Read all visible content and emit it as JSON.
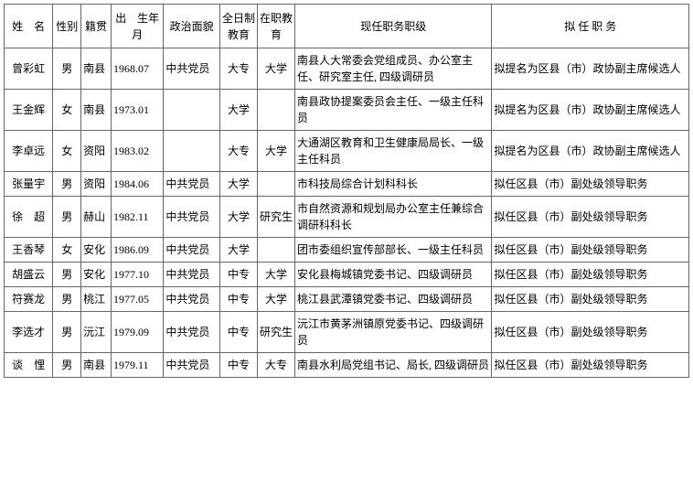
{
  "headers": {
    "name": "姓　名",
    "gender": "性别",
    "origin": "籍贯",
    "birth": "出　生年　月",
    "politics": "政治面貌",
    "edu_full": "全日制教育",
    "edu_job": "在职教育",
    "current": "现任职务职级",
    "proposed": "拟 任 职 务"
  },
  "rows": [
    {
      "name": "曾彩虹",
      "gender": "男",
      "origin": "南县",
      "birth": "1968.07",
      "politics": "中共党员",
      "edu_full": "大专",
      "edu_job": "大学",
      "current": "南县人大常委会党组成员、办公室主任、研究室主任, 四级调研员",
      "proposed": "拟提名为区县（市）政协副主席候选人"
    },
    {
      "name": "王金辉",
      "gender": "女",
      "origin": "南县",
      "birth": "1973.01",
      "politics": "",
      "edu_full": "大学",
      "edu_job": "",
      "current": "南县政协提案委员会主任、一级主任科员",
      "proposed": "拟提名为区县（市）政协副主席候选人"
    },
    {
      "name": "李卓远",
      "gender": "女",
      "origin": "资阳",
      "birth": "1983.02",
      "politics": "",
      "edu_full": "大专",
      "edu_job": "大学",
      "current": "大通湖区教育和卫生健康局局长、一级主任科员",
      "proposed": "拟提名为区县（市）政协副主席候选人"
    },
    {
      "name": "张量宇",
      "gender": "男",
      "origin": "资阳",
      "birth": "1984.06",
      "politics": "中共党员",
      "edu_full": "大学",
      "edu_job": "",
      "current": "市科技局综合计划科科长",
      "proposed": "拟任区县（市）副处级领导职务"
    },
    {
      "name": "徐　超",
      "gender": "男",
      "origin": "赫山",
      "birth": "1982.11",
      "politics": "中共党员",
      "edu_full": "大学",
      "edu_job": "研究生",
      "current": "市自然资源和规划局办公室主任兼综合调研科科长",
      "proposed": "拟任区县（市）副处级领导职务"
    },
    {
      "name": "王香琴",
      "gender": "女",
      "origin": "安化",
      "birth": "1986.09",
      "politics": "中共党员",
      "edu_full": "大学",
      "edu_job": "",
      "current": "团市委组织宣传部部长、一级主任科员",
      "proposed": "拟任区县（市）副处级领导职务"
    },
    {
      "name": "胡盛云",
      "gender": "男",
      "origin": "安化",
      "birth": "1977.10",
      "politics": "中共党员",
      "edu_full": "中专",
      "edu_job": "大学",
      "current": "安化县梅城镇党委书记、四级调研员",
      "proposed": "拟任区县（市）副处级领导职务"
    },
    {
      "name": "符赛龙",
      "gender": "男",
      "origin": "桃江",
      "birth": "1977.05",
      "politics": "中共党员",
      "edu_full": "中专",
      "edu_job": "大学",
      "current": "桃江县武潭镇党委书记、四级调研员",
      "proposed": "拟任区县（市）副处级领导职务"
    },
    {
      "name": "李选才",
      "gender": "男",
      "origin": "沅江",
      "birth": "1979.09",
      "politics": "中共党员",
      "edu_full": "中专",
      "edu_job": "研究生",
      "current": "沅江市黄茅洲镇原党委书记、四级调研员",
      "proposed": "拟任区县（市）副处级领导职务"
    },
    {
      "name": "谈　悝",
      "gender": "男",
      "origin": "南县",
      "birth": "1979.11",
      "politics": "中共党员",
      "edu_full": "中专",
      "edu_job": "大专",
      "current": "南县水利局党组书记、局长, 四级调研员",
      "proposed": "拟任区县（市）副处级领导职务"
    }
  ],
  "style": {
    "border_color": "#666666",
    "background": "#ffffff",
    "font_family": "SimSun",
    "font_size_pt": 12
  }
}
